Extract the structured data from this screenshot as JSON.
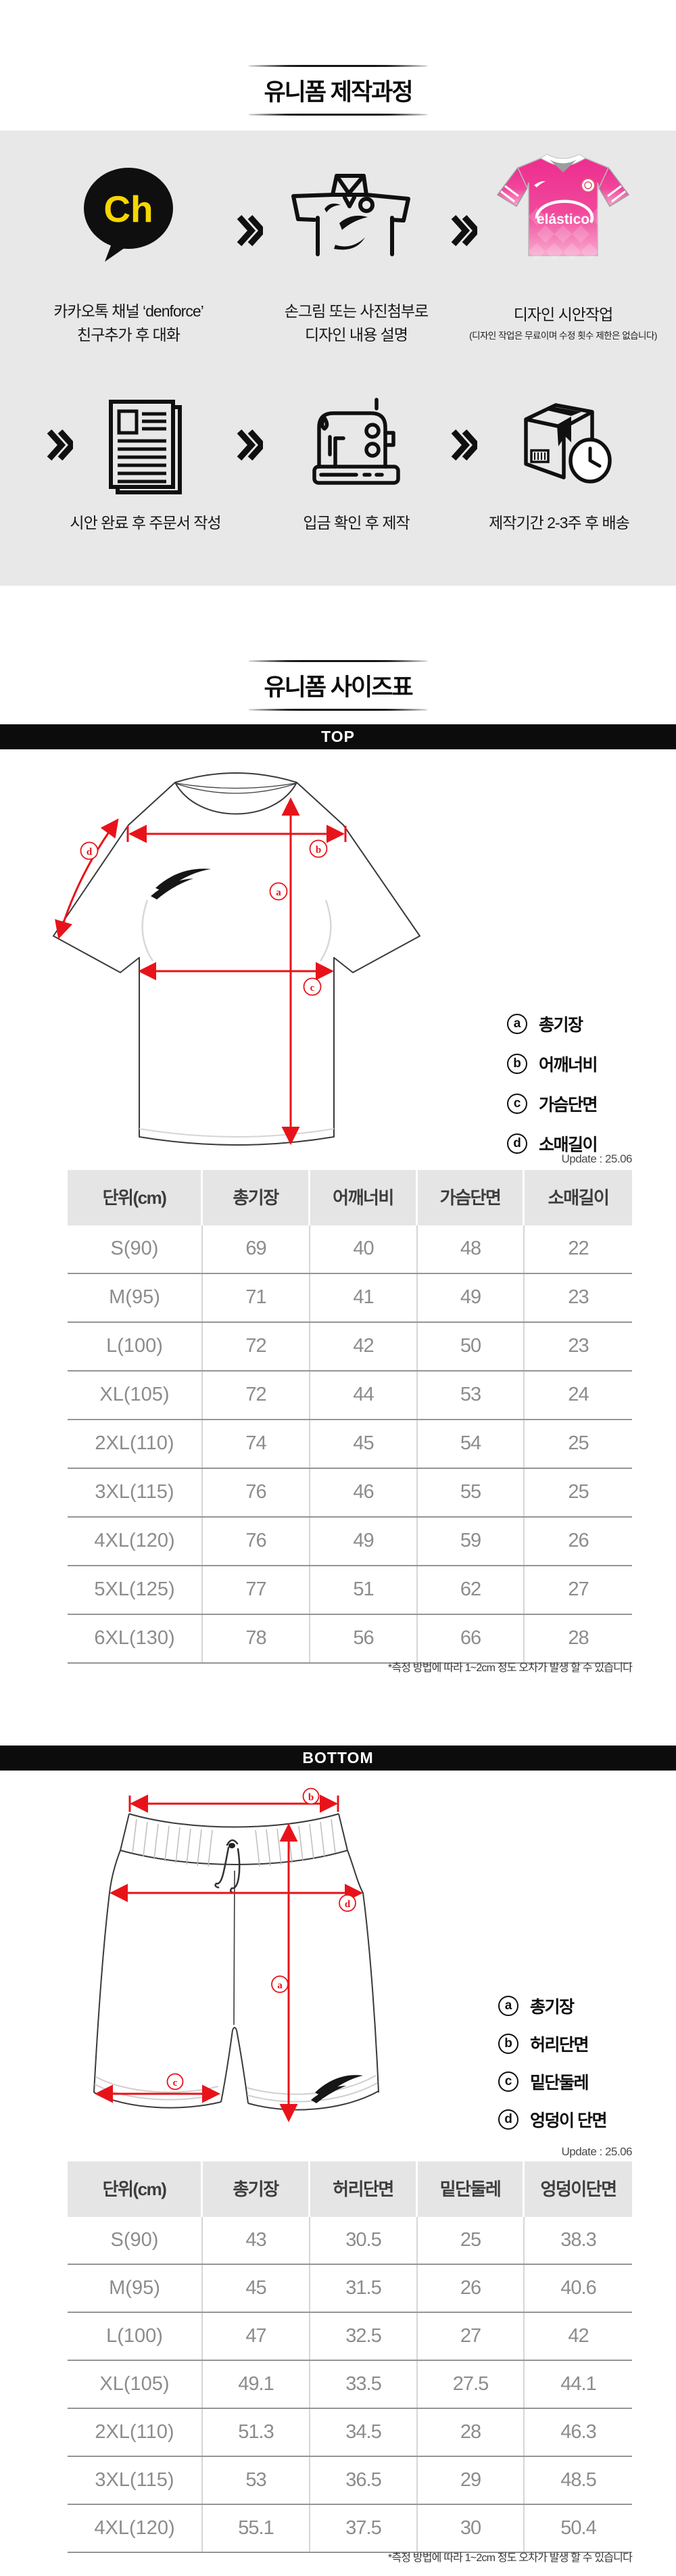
{
  "process": {
    "title": "유니폼 제작과정",
    "kakao_badge": "Ch",
    "jersey_brand": "elástico",
    "steps_row1": [
      {
        "line1": "카카오톡 채널 ‘denforce’",
        "line2": "친구추가 후 대화"
      },
      {
        "line1": "손그림 또는 사진첨부로",
        "line2": "디자인 내용 설명"
      },
      {
        "line1": "디자인 시안작업",
        "sub": "(디자인 작업은 무료이며 수정 횟수 제한은 없습니다)"
      }
    ],
    "steps_row2": [
      {
        "label": "시안 완료 후 주문서 작성"
      },
      {
        "label": "입금 확인 후 제작"
      },
      {
        "label": "제작기간 2-3주 후 배송"
      }
    ]
  },
  "size_section": {
    "title": "유니폼 사이즈표",
    "top": {
      "bar_label": "TOP",
      "update": "Update : 25.06",
      "legend": [
        {
          "key": "a",
          "label": "총기장"
        },
        {
          "key": "b",
          "label": "어깨너비"
        },
        {
          "key": "c",
          "label": "가슴단면"
        },
        {
          "key": "d",
          "label": "소매길이"
        }
      ],
      "table": {
        "headers": [
          "단위(cm)",
          "총기장",
          "어깨너비",
          "가슴단면",
          "소매길이"
        ],
        "rows": [
          [
            "S(90)",
            "69",
            "40",
            "48",
            "22"
          ],
          [
            "M(95)",
            "71",
            "41",
            "49",
            "23"
          ],
          [
            "L(100)",
            "72",
            "42",
            "50",
            "23"
          ],
          [
            "XL(105)",
            "72",
            "44",
            "53",
            "24"
          ],
          [
            "2XL(110)",
            "74",
            "45",
            "54",
            "25"
          ],
          [
            "3XL(115)",
            "76",
            "46",
            "55",
            "25"
          ],
          [
            "4XL(120)",
            "76",
            "49",
            "59",
            "26"
          ],
          [
            "5XL(125)",
            "77",
            "51",
            "62",
            "27"
          ],
          [
            "6XL(130)",
            "78",
            "56",
            "66",
            "28"
          ]
        ]
      },
      "footnote": "*측정 방법에 따라 1~2cm 정도 오차가 발생 할 수 있습니다"
    },
    "bottom": {
      "bar_label": "BOTTOM",
      "update": "Update : 25.06",
      "legend": [
        {
          "key": "a",
          "label": "총기장"
        },
        {
          "key": "b",
          "label": "허리단면"
        },
        {
          "key": "c",
          "label": "밑단둘레"
        },
        {
          "key": "d",
          "label": "엉덩이 단면"
        }
      ],
      "table": {
        "headers": [
          "단위(cm)",
          "총기장",
          "허리단면",
          "밑단둘레",
          "엉덩이단면"
        ],
        "rows": [
          [
            "S(90)",
            "43",
            "30.5",
            "25",
            "38.3"
          ],
          [
            "M(95)",
            "45",
            "31.5",
            "26",
            "40.6"
          ],
          [
            "L(100)",
            "47",
            "32.5",
            "27",
            "42"
          ],
          [
            "XL(105)",
            "49.1",
            "33.5",
            "27.5",
            "44.1"
          ],
          [
            "2XL(110)",
            "51.3",
            "34.5",
            "28",
            "46.3"
          ],
          [
            "3XL(115)",
            "53",
            "36.5",
            "29",
            "48.5"
          ],
          [
            "4XL(120)",
            "55.1",
            "37.5",
            "30",
            "50.4"
          ]
        ]
      },
      "footnote": "*측정 방법에 따라 1~2cm 정도 오차가 발생 할 수 있습니다"
    }
  },
  "colors": {
    "accent_red": "#e8131a",
    "kakao_yellow": "#f6d600",
    "jersey_pink": "#ef2f90",
    "panel_gray": "#e8e8e8",
    "bar_black": "#0c0c0c"
  }
}
